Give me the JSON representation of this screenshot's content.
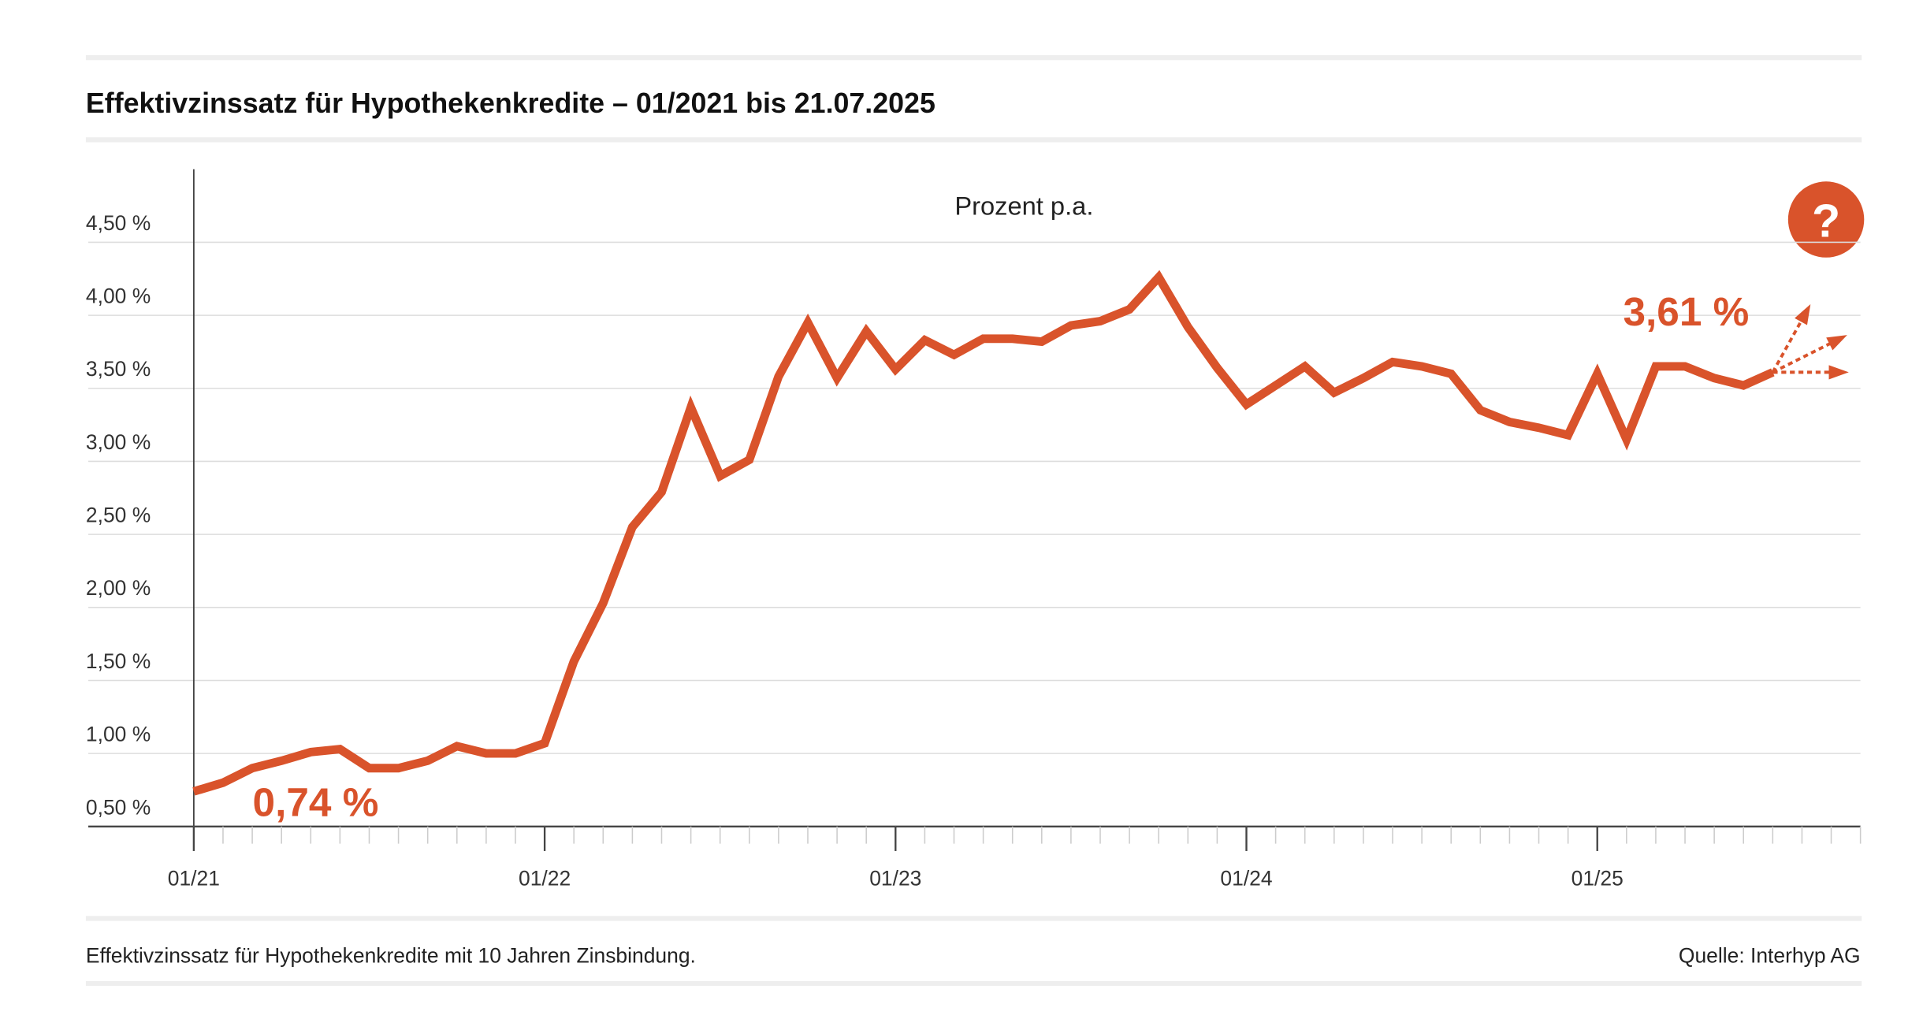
{
  "chart_data": {
    "type": "line",
    "title": "Effektivzinssatz für Hypothekenkredite – 01/2021 bis 21.07.2025",
    "y_label": "Prozent p.a.",
    "footnote": "Effektivzinssatz für Hypothekenkredite mit 10 Jahren Zinsbindung.",
    "source": "Quelle: Interhyp AG",
    "help": "?",
    "color": "#d9532b",
    "x": [
      "2021-01",
      "2021-02",
      "2021-03",
      "2021-04",
      "2021-05",
      "2021-06",
      "2021-07",
      "2021-08",
      "2021-09",
      "2021-10",
      "2021-11",
      "2021-12",
      "2022-01",
      "2022-02",
      "2022-03",
      "2022-04",
      "2022-05",
      "2022-06",
      "2022-07",
      "2022-08",
      "2022-09",
      "2022-10",
      "2022-11",
      "2022-12",
      "2023-01",
      "2023-02",
      "2023-03",
      "2023-04",
      "2023-05",
      "2023-06",
      "2023-07",
      "2023-08",
      "2023-09",
      "2023-10",
      "2023-11",
      "2023-12",
      "2024-01",
      "2024-02",
      "2024-03",
      "2024-04",
      "2024-05",
      "2024-06",
      "2024-07",
      "2024-08",
      "2024-09",
      "2024-10",
      "2024-11",
      "2024-12",
      "2025-01",
      "2025-02",
      "2025-03",
      "2025-04",
      "2025-05",
      "2025-06",
      "2025-07"
    ],
    "values": [
      0.74,
      0.8,
      0.9,
      0.95,
      1.01,
      1.03,
      0.9,
      0.9,
      0.95,
      1.05,
      1.0,
      1.0,
      1.07,
      1.63,
      2.03,
      2.55,
      2.79,
      3.37,
      2.9,
      3.01,
      3.58,
      3.95,
      3.57,
      3.89,
      3.63,
      3.83,
      3.73,
      3.84,
      3.84,
      3.82,
      3.93,
      3.96,
      4.04,
      4.26,
      3.92,
      3.64,
      3.39,
      3.52,
      3.65,
      3.47,
      3.57,
      3.68,
      3.65,
      3.6,
      3.35,
      3.27,
      3.23,
      3.18,
      3.6,
      3.15,
      3.65,
      3.65,
      3.57,
      3.52,
      3.61
    ],
    "value_labels": [
      "0,74 %",
      null,
      null,
      null,
      null,
      null,
      null,
      null,
      null,
      null,
      null,
      null,
      null,
      null,
      null,
      null,
      null,
      null,
      null,
      null,
      null,
      null,
      null,
      null,
      null,
      null,
      null,
      null,
      null,
      null,
      null,
      null,
      null,
      null,
      null,
      null,
      null,
      null,
      null,
      null,
      null,
      null,
      null,
      null,
      null,
      null,
      null,
      null,
      null,
      null,
      null,
      null,
      null,
      null,
      "3,61 %"
    ],
    "xlim": [
      "2021-01",
      "2025-10"
    ],
    "xticks": [
      {
        "value": "2021-01",
        "label": "01/21"
      },
      {
        "value": "2022-01",
        "label": "01/22"
      },
      {
        "value": "2023-01",
        "label": "01/23"
      },
      {
        "value": "2024-01",
        "label": "01/24"
      },
      {
        "value": "2025-01",
        "label": "01/25"
      }
    ],
    "ylim": [
      0.5,
      5.0
    ],
    "yticks": [
      {
        "value": 0.5,
        "label": "0,50 %"
      },
      {
        "value": 1.0,
        "label": "1,00 %"
      },
      {
        "value": 1.5,
        "label": "1,50 %"
      },
      {
        "value": 2.0,
        "label": "2,00 %"
      },
      {
        "value": 2.5,
        "label": "2,50 %"
      },
      {
        "value": 3.0,
        "label": "3,00 %"
      },
      {
        "value": 3.5,
        "label": "3,50 %"
      },
      {
        "value": 4.0,
        "label": "4,00 %"
      },
      {
        "value": 4.5,
        "label": "4,50 %"
      }
    ]
  }
}
